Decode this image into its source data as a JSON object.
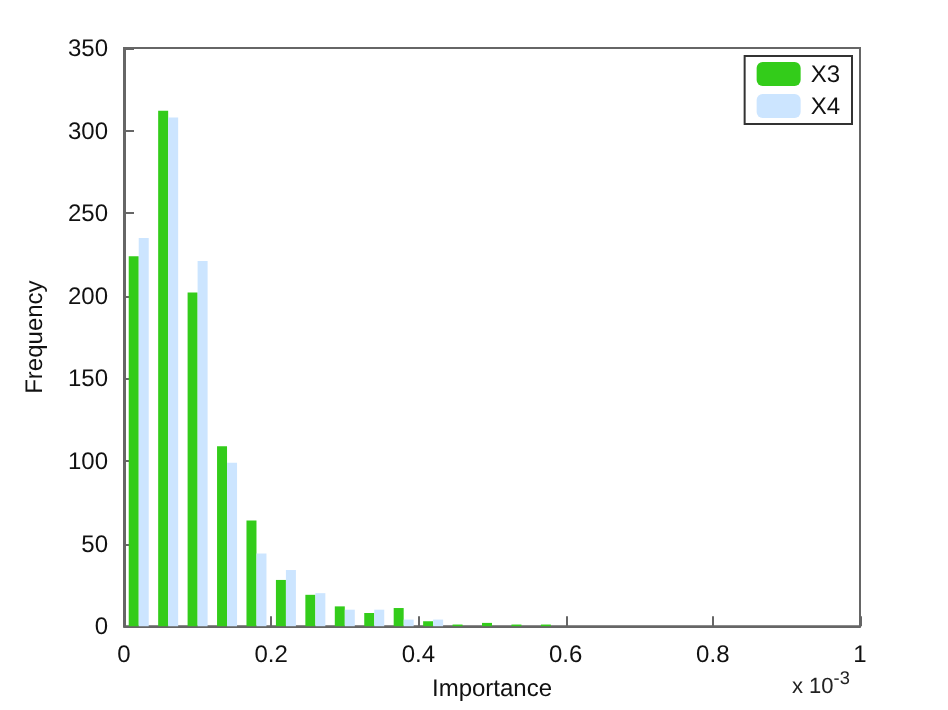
{
  "chart_data": {
    "type": "histogram",
    "xlabel": "Importance",
    "ylabel": "Frequency",
    "annotations": [
      "x 10$^{-3}$"
    ],
    "bins": [
      0,
      0.04,
      0.08,
      0.12,
      0.16,
      0.2,
      0.24,
      0.28,
      0.32,
      0.36,
      0.4,
      0.44,
      0.48,
      0.52,
      0.56,
      0.6
    ],
    "series": [
      {
        "name": "X3",
        "color": "#33cc1a",
        "values": [
          224,
          312,
          202,
          109,
          64,
          28,
          19,
          12,
          8,
          11,
          3,
          1,
          2,
          1,
          1
        ]
      },
      {
        "name": "X4",
        "color": "#cce5ff",
        "values": [
          235,
          308,
          221,
          99,
          44,
          34,
          20,
          10,
          10,
          4,
          4,
          0,
          null,
          0,
          null
        ]
      }
    ],
    "xlim": [
      0,
      1
    ],
    "xticks": [
      0,
      0.2,
      0.4,
      0.6,
      0.8,
      1
    ],
    "ylim": [
      0,
      350
    ],
    "yticks": [
      0,
      50,
      100,
      150,
      200,
      250,
      300,
      350
    ],
    "grid": false,
    "legend": "top right"
  }
}
